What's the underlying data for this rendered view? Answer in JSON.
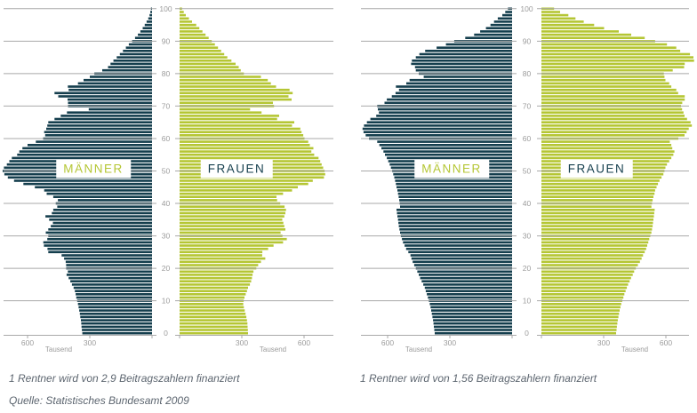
{
  "colors": {
    "men_bar": "#143e4d",
    "women_bar": "#b5c634",
    "gridline": "#a9a9a9",
    "axis_text": "#9b9b9b",
    "caption_text": "#5d6670",
    "background": "#ffffff"
  },
  "source": "Quelle: Statistisches Bundesamt 2009",
  "chart_data": [
    {
      "type": "bar",
      "variant": "population-pyramid",
      "title": "",
      "caption": "1 Rentner wird von 2,9 Beitragszahlern finanziert",
      "age_axis": {
        "min": 0,
        "max": 100,
        "tick_step": 10,
        "tick_labels": [
          "0",
          "10",
          "20",
          "30",
          "40",
          "50",
          "60",
          "70",
          "80",
          "90",
          "100"
        ]
      },
      "value_axis": {
        "unit_label": "Tausend",
        "ticks": [
          300,
          600
        ],
        "max": 750
      },
      "series": [
        {
          "name": "MÄNNER",
          "side": "left",
          "color": "#143e4d",
          "label_color": "#b5c634",
          "values": [
            336,
            338,
            340,
            341,
            343,
            346,
            348,
            351,
            354,
            357,
            361,
            365,
            368,
            372,
            378,
            386,
            394,
            402,
            412,
            406,
            414,
            414,
            416,
            424,
            436,
            500,
            504,
            521,
            524,
            505,
            500,
            512,
            500,
            488,
            478,
            496,
            514,
            483,
            476,
            457,
            464,
            454,
            476,
            508,
            520,
            565,
            620,
            665,
            695,
            712,
            720,
            714,
            700,
            688,
            676,
            650,
            640,
            625,
            600,
            560,
            525,
            515,
            520,
            510,
            505,
            500,
            470,
            440,
            410,
            305,
            405,
            405,
            407,
            452,
            470,
            402,
            406,
            357,
            330,
            300,
            278,
            240,
            212,
            200,
            186,
            170,
            155,
            140,
            126,
            112,
            96,
            82,
            68,
            56,
            45,
            35,
            26,
            18,
            12,
            8,
            5
          ]
        },
        {
          "name": "FRAUEN",
          "side": "right",
          "color": "#b5c634",
          "label_color": "#143e4d",
          "values": [
            330,
            329,
            328,
            327,
            325,
            322,
            318,
            314,
            310,
            307,
            309,
            313,
            319,
            325,
            330,
            339,
            345,
            349,
            352,
            356,
            370,
            379,
            392,
            413,
            398,
            399,
            427,
            453,
            499,
            517,
            496,
            487,
            510,
            505,
            500,
            495,
            505,
            510,
            513,
            506,
            485,
            470,
            467,
            499,
            542,
            570,
            620,
            642,
            696,
            702,
            699,
            692,
            685,
            678,
            670,
            649,
            635,
            645,
            628,
            620,
            602,
            596,
            588,
            582,
            542,
            553,
            470,
            480,
            395,
            340,
            455,
            450,
            540,
            525,
            545,
            530,
            465,
            440,
            425,
            392,
            310,
            295,
            285,
            270,
            250,
            230,
            215,
            200,
            185,
            170,
            155,
            140,
            125,
            110,
            95,
            80,
            60,
            45,
            30,
            20,
            12
          ]
        }
      ]
    },
    {
      "type": "bar",
      "variant": "population-pyramid",
      "title": "",
      "caption": "1 Rentner wird von 1,56 Beitragszahlern finanziert",
      "age_axis": {
        "min": 0,
        "max": 100,
        "tick_step": 10,
        "tick_labels": [
          "0",
          "10",
          "20",
          "30",
          "40",
          "50",
          "60",
          "70",
          "80",
          "90",
          "100"
        ]
      },
      "value_axis": {
        "unit_label": "Tausend",
        "ticks": [
          300,
          600
        ],
        "max": 750
      },
      "series": [
        {
          "name": "MÄNNER",
          "side": "left",
          "color": "#143e4d",
          "label_color": "#b5c634",
          "values": [
            373,
            375,
            377,
            379,
            381,
            384,
            387,
            390,
            393,
            397,
            401,
            406,
            411,
            416,
            421,
            428,
            436,
            443,
            450,
            457,
            464,
            472,
            479,
            485,
            490,
            500,
            511,
            518,
            526,
            531,
            536,
            540,
            543,
            546,
            548,
            550,
            553,
            555,
            557,
            540,
            542,
            544,
            547,
            550,
            553,
            557,
            560,
            564,
            568,
            573,
            578,
            584,
            590,
            597,
            604,
            613,
            620,
            630,
            640,
            650,
            690,
            706,
            716,
            721,
            714,
            700,
            683,
            655,
            642,
            647,
            650,
            615,
            604,
            580,
            562,
            545,
            560,
            510,
            494,
            426,
            450,
            464,
            468,
            487,
            483,
            464,
            447,
            419,
            364,
            319,
            279,
            226,
            183,
            154,
            126,
            104,
            87,
            69,
            47,
            33,
            20
          ]
        },
        {
          "name": "FRAUEN",
          "side": "right",
          "color": "#b5c634",
          "label_color": "#143e4d",
          "values": [
            360,
            362,
            364,
            366,
            368,
            371,
            374,
            377,
            381,
            385,
            390,
            395,
            400,
            406,
            412,
            418,
            425,
            432,
            440,
            447,
            455,
            465,
            475,
            483,
            490,
            498,
            505,
            510,
            515,
            520,
            525,
            530,
            533,
            536,
            538,
            540,
            542,
            544,
            546,
            530,
            533,
            536,
            540,
            545,
            548,
            555,
            562,
            569,
            579,
            588,
            593,
            598,
            605,
            616,
            626,
            636,
            641,
            631,
            626,
            619,
            660,
            690,
            700,
            710,
            725,
            719,
            702,
            690,
            685,
            678,
            673,
            679,
            691,
            691,
            659,
            650,
            626,
            616,
            598,
            593,
            590,
            633,
            688,
            691,
            736,
            733,
            716,
            669,
            650,
            605,
            548,
            498,
            433,
            373,
            302,
            254,
            204,
            164,
            130,
            90,
            61
          ]
        }
      ]
    }
  ]
}
